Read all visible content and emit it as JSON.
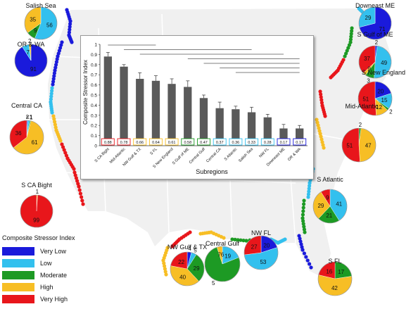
{
  "legend": {
    "title": "Composite Stressor Index",
    "items": [
      {
        "label": "Very Low",
        "color": "#1a1adb"
      },
      {
        "label": "Low",
        "color": "#33c0ee"
      },
      {
        "label": "Moderate",
        "color": "#1d9a24"
      },
      {
        "label": "High",
        "color": "#f7be25"
      },
      {
        "label": "Very High",
        "color": "#e8161b"
      }
    ]
  },
  "pies": [
    {
      "name": "Salish Sea",
      "slices": [
        {
          "cat": "Very Low",
          "value": 0
        },
        {
          "cat": "Low",
          "value": 56
        },
        {
          "cat": "Moderate",
          "value": 9
        },
        {
          "cat": "High",
          "value": 35
        },
        {
          "cat": "Very High",
          "value": 0
        }
      ],
      "labels": [
        "56",
        "9",
        "35"
      ]
    },
    {
      "name": "OR & WA",
      "slices": [
        {
          "cat": "Very Low",
          "value": 91
        },
        {
          "cat": "Low",
          "value": 7
        },
        {
          "cat": "Moderate",
          "value": 0
        },
        {
          "cat": "High",
          "value": 2
        },
        {
          "cat": "Very High",
          "value": 0
        }
      ],
      "labels": [
        "91",
        "7",
        "2"
      ]
    },
    {
      "name": "Central CA",
      "slices": [
        {
          "cat": "Very Low",
          "value": 1
        },
        {
          "cat": "Low",
          "value": 2
        },
        {
          "cat": "Moderate",
          "value": 1
        },
        {
          "cat": "High",
          "value": 61
        },
        {
          "cat": "Very High",
          "value": 36
        }
      ],
      "labels": [
        "2",
        "<1",
        "1",
        "61",
        "36"
      ]
    },
    {
      "name": "S CA Bight",
      "slices": [
        {
          "cat": "Very Low",
          "value": 0
        },
        {
          "cat": "Low",
          "value": 0
        },
        {
          "cat": "Moderate",
          "value": 0
        },
        {
          "cat": "High",
          "value": 1
        },
        {
          "cat": "Very High",
          "value": 99
        }
      ],
      "labels": [
        "1",
        "99"
      ]
    },
    {
      "name": "Downeast ME",
      "slices": [
        {
          "cat": "Very Low",
          "value": 71
        },
        {
          "cat": "Low",
          "value": 29
        },
        {
          "cat": "Moderate",
          "value": 0
        },
        {
          "cat": "High",
          "value": 0
        },
        {
          "cat": "Very High",
          "value": 0
        }
      ],
      "labels": [
        "71",
        "29"
      ]
    },
    {
      "name": "S Gulf of ME",
      "slices": [
        {
          "cat": "Very Low",
          "value": 2
        },
        {
          "cat": "Low",
          "value": 49
        },
        {
          "cat": "Moderate",
          "value": 9
        },
        {
          "cat": "High",
          "value": 3
        },
        {
          "cat": "Very High",
          "value": 37
        }
      ],
      "labels": [
        "2",
        "49",
        "3",
        "9",
        "37"
      ]
    },
    {
      "name": "S New England",
      "slices": [
        {
          "cat": "Very Low",
          "value": 20
        },
        {
          "cat": "Low",
          "value": 15
        },
        {
          "cat": "Moderate",
          "value": 2
        },
        {
          "cat": "High",
          "value": 12
        },
        {
          "cat": "Very High",
          "value": 51
        }
      ],
      "labels": [
        "20",
        "15",
        "2",
        "12",
        "51"
      ]
    },
    {
      "name": "Mid-Atlantic",
      "slices": [
        {
          "cat": "Very Low",
          "value": 0
        },
        {
          "cat": "Low",
          "value": 0
        },
        {
          "cat": "Moderate",
          "value": 2
        },
        {
          "cat": "High",
          "value": 47
        },
        {
          "cat": "Very High",
          "value": 51
        }
      ],
      "labels": [
        "2",
        "47",
        "51"
      ]
    },
    {
      "name": "S Atlantic",
      "slices": [
        {
          "cat": "Very Low",
          "value": 0
        },
        {
          "cat": "Low",
          "value": 41
        },
        {
          "cat": "Moderate",
          "value": 21
        },
        {
          "cat": "High",
          "value": 29
        },
        {
          "cat": "Very High",
          "value": 9
        }
      ],
      "labels": [
        "41",
        "21",
        "29",
        "9"
      ]
    },
    {
      "name": "NW FL",
      "slices": [
        {
          "cat": "Very Low",
          "value": 20
        },
        {
          "cat": "Low",
          "value": 53
        },
        {
          "cat": "Moderate",
          "value": 0
        },
        {
          "cat": "High",
          "value": 0
        },
        {
          "cat": "Very High",
          "value": 27
        }
      ],
      "labels": [
        "20",
        "53",
        "27"
      ]
    },
    {
      "name": "Central Gulf",
      "slices": [
        {
          "cat": "Very Low",
          "value": 0
        },
        {
          "cat": "Low",
          "value": 19
        },
        {
          "cat": "Moderate",
          "value": 76
        },
        {
          "cat": "High",
          "value": 5
        },
        {
          "cat": "Very High",
          "value": 0
        }
      ],
      "labels": [
        "19",
        "5",
        "76"
      ]
    },
    {
      "name": "NW Gulf & TX",
      "slices": [
        {
          "cat": "Very Low",
          "value": 4
        },
        {
          "cat": "Low",
          "value": 5
        },
        {
          "cat": "Moderate",
          "value": 29
        },
        {
          "cat": "High",
          "value": 40
        },
        {
          "cat": "Very High",
          "value": 22
        }
      ],
      "labels": [
        "4",
        "5",
        "29",
        "40",
        "22"
      ]
    },
    {
      "name": "S FL",
      "slices": [
        {
          "cat": "Very Low",
          "value": 0
        },
        {
          "cat": "Low",
          "value": 0
        },
        {
          "cat": "Moderate",
          "value": 17
        },
        {
          "cat": "High",
          "value": 42
        },
        {
          "cat": "Very High",
          "value": 16
        }
      ],
      "labels": [
        "17",
        "42",
        "16"
      ]
    }
  ],
  "chart_data": {
    "type": "bar",
    "xlabel": "Subregions",
    "ylabel": "Composite Stressor Index",
    "ylim": [
      0,
      1
    ],
    "yticks": [
      "0",
      "0.1",
      "0.2",
      "0.3",
      "0.4",
      "0.5",
      "0.6",
      "0.7",
      "0.8",
      "0.9",
      "1"
    ],
    "categories": [
      "S CA Bight",
      "Mid-Atlantic",
      "NW Gulf & TX",
      "S FL",
      "S New England",
      "S Gulf of ME",
      "Central Gulf",
      "Central CA",
      "S Atlantic",
      "Salish Sea",
      "NW FL",
      "Downeast ME",
      "OR & WA"
    ],
    "values": [
      0.88,
      0.78,
      0.66,
      0.64,
      0.61,
      0.58,
      0.47,
      0.37,
      0.36,
      0.33,
      0.28,
      0.17,
      0.17
    ],
    "errors": [
      0.04,
      0.02,
      0.06,
      0.05,
      0.05,
      0.06,
      0.03,
      0.06,
      0.03,
      0.05,
      0.03,
      0.04,
      0.03
    ],
    "value_labels": [
      "0.88",
      "0.78",
      "0.66",
      "0.64",
      "0.61",
      "0.58",
      "0.47",
      "0.37",
      "0.36",
      "0.33",
      "0.28",
      "0.17",
      "0.17"
    ],
    "label_colors": [
      "#e8161b",
      "#e8161b",
      "#f7be25",
      "#f7be25",
      "#f7be25",
      "#1d9a24",
      "#1d9a24",
      "#33c0ee",
      "#33c0ee",
      "#33c0ee",
      "#33c0ee",
      "#1a1adb",
      "#1a1adb"
    ],
    "significance_brackets": [
      [
        0,
        3
      ],
      [
        1,
        9
      ],
      [
        2,
        11
      ],
      [
        5,
        12
      ],
      [
        6,
        12
      ],
      [
        7,
        12
      ],
      [
        8,
        12
      ]
    ]
  }
}
